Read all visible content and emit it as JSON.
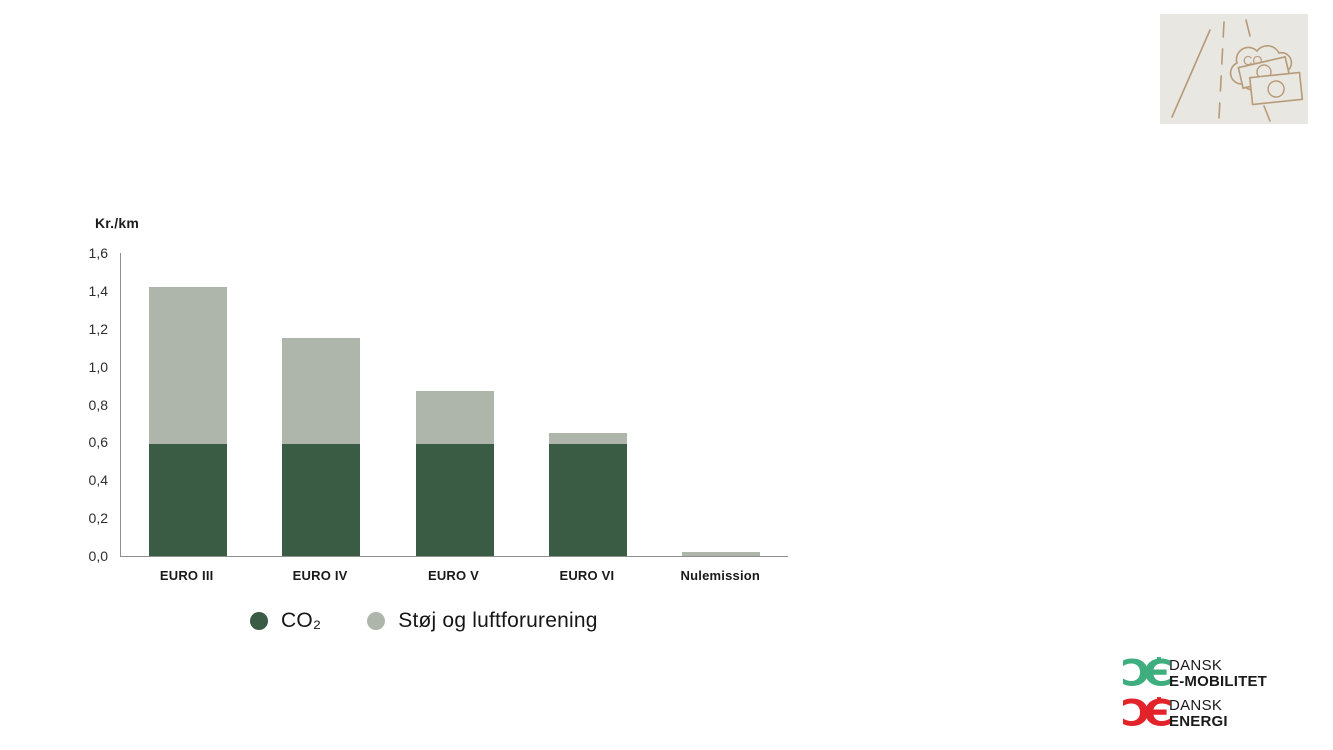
{
  "chart_data": {
    "type": "bar",
    "stacked": true,
    "title": "",
    "ylabel": "Kr./km",
    "xlabel": "",
    "ylim": [
      0,
      1.6
    ],
    "ytick_step": 0.2,
    "ytick_labels": [
      "0,0",
      "0,2",
      "0,4",
      "0,6",
      "0,8",
      "1,0",
      "1,2",
      "1,4",
      "1,6"
    ],
    "grid": false,
    "legend_position": "bottom",
    "categories": [
      "EURO III",
      "EURO IV",
      "EURO V",
      "EURO VI",
      "Nulemission"
    ],
    "series": [
      {
        "name": "CO₂",
        "color": "#3a5b44",
        "values": [
          0.59,
          0.59,
          0.59,
          0.59,
          0
        ]
      },
      {
        "name": "Støj og luftforurening",
        "color": "#aeb6ac",
        "values": [
          0.83,
          0.56,
          0.28,
          0.06,
          0.02
        ]
      }
    ],
    "totals": [
      1.42,
      1.15,
      0.87,
      0.65,
      0.02
    ]
  },
  "legend": {
    "items": [
      {
        "label": "CO₂",
        "color": "#3a5b44"
      },
      {
        "label": "Støj og luftforurening",
        "color": "#aeb6ac"
      }
    ]
  },
  "icon": {
    "name": "road-co2-money-icon",
    "co2_label": "CO",
    "co2_sub": "2",
    "background": "#e9e7e2",
    "line_color": "#b79a78"
  },
  "logos": [
    {
      "mark": "ƆЄ",
      "color": "#3fae7e",
      "line1": "DANSK",
      "line2": "E-MOBILITET"
    },
    {
      "mark": "ƆЄ",
      "color": "#e3232a",
      "line1": "DANSK",
      "line2": "ENERGI"
    }
  ]
}
